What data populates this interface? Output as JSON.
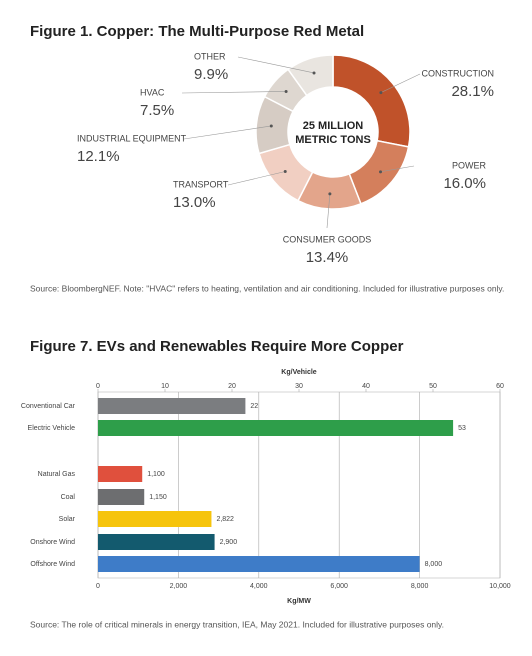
{
  "chart_data": [
    {
      "type": "pie",
      "title": "Figure 1. Copper: The Multi-Purpose Red Metal",
      "center_label": [
        "25 MILLION",
        "METRIC TONS"
      ],
      "categories": [
        "CONSTRUCTION",
        "POWER",
        "CONSUMER GOODS",
        "TRANSPORT",
        "INDUSTRIAL EQUIPMENT",
        "HVAC",
        "OTHER"
      ],
      "values": [
        28.1,
        16.0,
        13.4,
        13.0,
        12.1,
        7.5,
        9.9
      ],
      "value_labels": [
        "28.1%",
        "16.0%",
        "13.4%",
        "13.0%",
        "12.1%",
        "7.5%",
        "9.9%"
      ],
      "colors": [
        "#c0522a",
        "#d47f5c",
        "#e3a58b",
        "#f1cfc2",
        "#d6ccc4",
        "#ded7d0",
        "#e9e5e0"
      ],
      "source": "Source: BloombergNEF. Note: \"HVAC\" refers to heating, ventilation and air conditioning. Included for illustrative purposes only."
    },
    {
      "type": "bar",
      "orientation": "horizontal",
      "title": "Figure 7. EVs and Renewables Require More Copper",
      "x2label": "Kg/Vehicle",
      "x2lim": [
        0,
        60
      ],
      "x2ticks": [
        0,
        10,
        20,
        30,
        40,
        50,
        60
      ],
      "xlabel": "Kg/MW",
      "xlim": [
        0,
        10000
      ],
      "xticks": [
        0,
        {
          "value": 2000,
          "label": "2,000"
        },
        {
          "value": 4000,
          "label": "4,000"
        },
        {
          "value": 6000,
          "label": "6,000"
        },
        {
          "value": 8000,
          "label": "8,000"
        },
        {
          "value": 10000,
          "label": "10,000"
        }
      ],
      "grid": true,
      "groups": [
        {
          "axis": "x2",
          "categories": [
            "Conventional Car",
            "Electric Vehicle"
          ],
          "values": [
            22,
            53
          ],
          "colors": [
            "#7b7d80",
            "#2e9e4a"
          ]
        },
        {
          "axis": "x",
          "categories": [
            "Natural Gas",
            "Coal",
            "Solar",
            "Onshore Wind",
            "Offshore Wind"
          ],
          "values": [
            1100,
            1150,
            2822,
            2900,
            8000
          ],
          "value_labels": [
            "1,100",
            "1,150",
            "2,822",
            "2,900",
            "8,000"
          ],
          "colors": [
            "#e0503d",
            "#6d6e70",
            "#f6c40c",
            "#135a6e",
            "#3e7cc8"
          ]
        }
      ],
      "source": "Source: The role of critical minerals in energy transition, IEA, May 2021. Included for illustrative purposes only."
    }
  ]
}
